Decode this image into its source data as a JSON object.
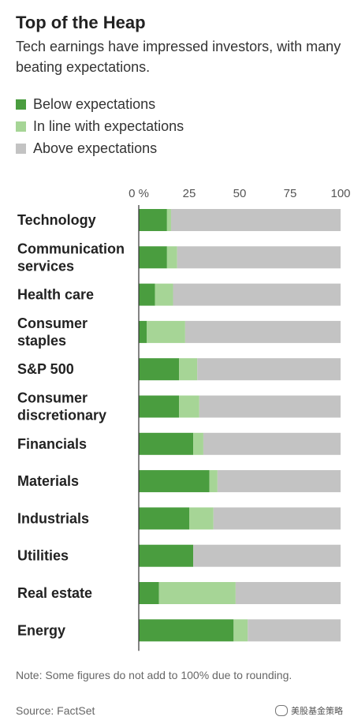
{
  "title": "Top of the Heap",
  "subtitle": "Tech earnings have impressed investors, with many beating expectations.",
  "legend": [
    {
      "label": "Below expectations",
      "color": "#4a9d3f"
    },
    {
      "label": "In line with expectations",
      "color": "#a6d596"
    },
    {
      "label": "Above expectations",
      "color": "#c3c3c3"
    }
  ],
  "note": "Note: Some figures do not add to 100% due to rounding.",
  "source": "Source: FactSet",
  "watermark": "美股基金策略",
  "chart_data": {
    "type": "bar",
    "orientation": "horizontal",
    "stacked": true,
    "xlim": [
      0,
      100
    ],
    "x_ticks": [
      "0 %",
      "25",
      "50",
      "75",
      "100"
    ],
    "x_tick_values": [
      0,
      25,
      50,
      75,
      100
    ],
    "categories": [
      [
        "Technology"
      ],
      [
        "Communication",
        "services"
      ],
      [
        "Health care"
      ],
      [
        "Consumer",
        "staples"
      ],
      [
        "S&P 500"
      ],
      [
        "Consumer",
        "discretionary"
      ],
      [
        "Financials"
      ],
      [
        "Materials"
      ],
      [
        "Industrials"
      ],
      [
        "Utilities"
      ],
      [
        "Real estate"
      ],
      [
        "Energy"
      ]
    ],
    "series": [
      {
        "name": "Below expectations",
        "color": "#4a9d3f",
        "values": [
          14,
          14,
          8,
          4,
          20,
          20,
          27,
          35,
          25,
          27,
          10,
          47
        ]
      },
      {
        "name": "In line with expectations",
        "color": "#a6d596",
        "values": [
          2,
          5,
          9,
          19,
          9,
          10,
          5,
          4,
          12,
          0,
          38,
          7
        ]
      },
      {
        "name": "Above expectations",
        "color": "#c3c3c3",
        "values": [
          84,
          81,
          83,
          77,
          71,
          70,
          68,
          61,
          63,
          73,
          52,
          46
        ]
      }
    ]
  }
}
